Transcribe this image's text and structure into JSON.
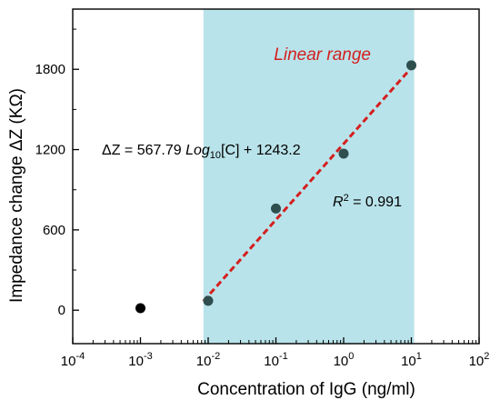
{
  "chart_data": {
    "type": "scatter",
    "xlabel": "Concentration of IgG (ng/ml)",
    "ylabel": "Impedance change ΔZ (KΩ)",
    "xscale": "log",
    "xlim": [
      0.0001,
      100
    ],
    "ylim": [
      -250,
      2250
    ],
    "x_ticks": [
      0.0001,
      0.001,
      0.01,
      0.1,
      1,
      10,
      100
    ],
    "x_tick_labels": [
      {
        "base": "10",
        "exp": "-4"
      },
      {
        "base": "10",
        "exp": "-3"
      },
      {
        "base": "10",
        "exp": "-2"
      },
      {
        "base": "10",
        "exp": "-1"
      },
      {
        "base": "10",
        "exp": "0"
      },
      {
        "base": "10",
        "exp": "1"
      },
      {
        "base": "10",
        "exp": "2"
      }
    ],
    "y_ticks": [
      0,
      600,
      1200,
      1800
    ],
    "y_tick_labels": [
      "0",
      "600",
      "1200",
      "1800"
    ],
    "points": [
      {
        "x": 0.001,
        "y": 15,
        "color": "#000000"
      },
      {
        "x": 0.01,
        "y": 70,
        "color": "#2f4f4f"
      },
      {
        "x": 0.1,
        "y": 760,
        "color": "#2f4f4f"
      },
      {
        "x": 1,
        "y": 1170,
        "color": "#2f4f4f"
      },
      {
        "x": 10,
        "y": 1830,
        "color": "#2f4f4f"
      }
    ],
    "fit_line": {
      "x": [
        0.0085,
        10.5
      ],
      "slope": 567.79,
      "intercept": 1243.2,
      "color": "#d41f1f",
      "style": "dashed"
    },
    "shaded_region": {
      "x": [
        0.0085,
        11
      ],
      "color": "#b9e3ea",
      "label": "Linear range",
      "label_color": "#d41f1f"
    },
    "equation": {
      "prefix": "ΔZ = 567.79 ",
      "log": "Log",
      "sub": "10",
      "suffix": "[C] + 1243.2"
    },
    "r_squared": {
      "r": "R",
      "sup": "2",
      "value": " = 0.991"
    },
    "grid": false
  }
}
